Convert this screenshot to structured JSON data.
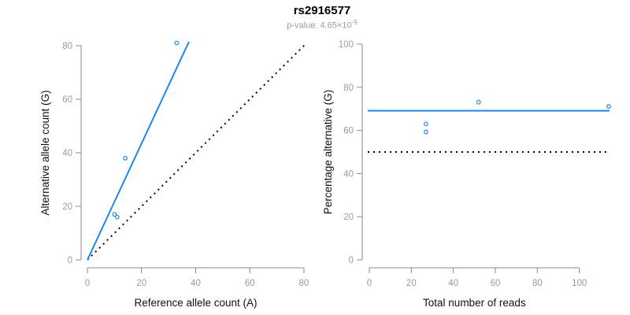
{
  "header": {
    "title": "rs2916577",
    "subtitle_prefix": "p-value: ",
    "p_value_mantissa": "4.65",
    "p_value_times_ten": "×10",
    "p_value_exponent": "-9"
  },
  "colors": {
    "accent_blue": "#1e86ee",
    "axis_line": "#8a8a8a",
    "tick_label": "#9b9b9b",
    "axis_title": "#111111",
    "dotted_line": "#000000",
    "title_text": "#000000",
    "subtitle_text": "#9b9b9b"
  },
  "chart_data": [
    {
      "type": "scatter",
      "name": "allele-counts-scatter",
      "xlabel": "Reference allele count (A)",
      "ylabel": "Alternative allele count (G)",
      "xlim": [
        0,
        80
      ],
      "ylim": [
        0,
        80
      ],
      "xticks": [
        0,
        20,
        40,
        60,
        80
      ],
      "yticks": [
        0,
        20,
        40,
        60,
        80
      ],
      "grid": false,
      "points": [
        [
          10,
          17
        ],
        [
          11,
          16
        ],
        [
          14,
          38
        ],
        [
          33,
          81
        ]
      ],
      "fit_line": {
        "kind": "segment",
        "x1": 0,
        "y1": 0,
        "x2": 37.5,
        "y2": 81.5,
        "style": "solid"
      },
      "reference_line": {
        "kind": "segment",
        "x1": 0,
        "y1": 0,
        "x2": 80.5,
        "y2": 80.5,
        "style": "dotted",
        "meaning": "identity y=x"
      }
    },
    {
      "type": "scatter",
      "name": "percentage-alternative-scatter",
      "xlabel": "Total number of reads",
      "ylabel": "Percentage alternative (G)",
      "xlim": [
        0,
        114.5
      ],
      "ylim": [
        0,
        100
      ],
      "xticks": [
        0,
        20,
        40,
        60,
        80,
        100
      ],
      "yticks": [
        0,
        20,
        40,
        60,
        80,
        100
      ],
      "grid": false,
      "points": [
        [
          27,
          63.0
        ],
        [
          27,
          59.3
        ],
        [
          52,
          73.1
        ],
        [
          114,
          71.1
        ]
      ],
      "fit_line": {
        "kind": "horizontal",
        "y": 69.1,
        "style": "solid"
      },
      "reference_line": {
        "kind": "horizontal",
        "y": 50,
        "style": "dotted",
        "meaning": "50% baseline"
      }
    }
  ]
}
